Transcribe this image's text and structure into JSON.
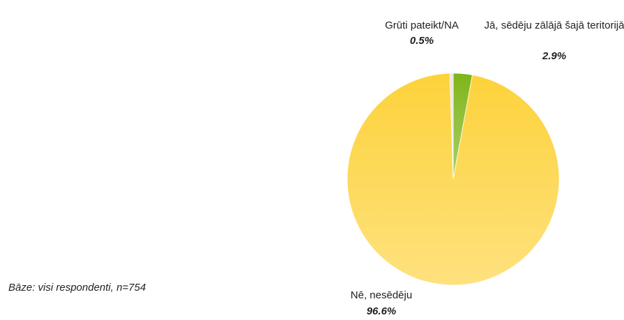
{
  "chart_data": {
    "type": "pie",
    "categories": [
      "Jā, sēdēju zālājā šajā teritorijā",
      "Nē, nesēdēju",
      "Grūti pateikt/NA"
    ],
    "values": [
      2.9,
      96.6,
      0.5
    ],
    "value_labels": [
      "2.9%",
      "96.6%",
      "0.5%"
    ],
    "colors": [
      "#7fb51a",
      "#fdd23a",
      "#e6e6e6"
    ],
    "annotation": "Bāze: visi respondenti, n=754"
  }
}
